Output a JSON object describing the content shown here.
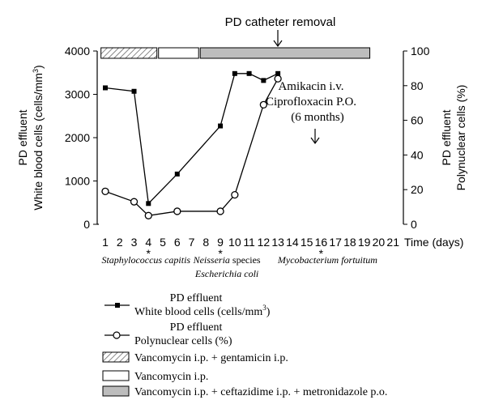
{
  "chart_data": {
    "type": "line",
    "annotation_top": "PD catheter removal",
    "annotation_mid": [
      "Amikacin i.v.",
      "Ciprofloxacin P.O.",
      "(6 months)"
    ],
    "xlabel": "Time (days)",
    "xticks": [
      1,
      2,
      3,
      4,
      5,
      6,
      7,
      8,
      9,
      10,
      11,
      12,
      13,
      14,
      15,
      16,
      17,
      18,
      19,
      20,
      21
    ],
    "xlim": [
      1,
      21
    ],
    "ylabel_left": [
      "PD effluent",
      "White blood cells (cells/mm",
      "3",
      ")"
    ],
    "ylim_left": [
      0,
      4000
    ],
    "yticks_left": [
      0,
      1000,
      2000,
      3000,
      4000
    ],
    "ylabel_right": [
      "PD effluent",
      "Polynuclear cells (%)"
    ],
    "ylim_right": [
      0,
      100
    ],
    "yticks_right": [
      0,
      20,
      40,
      60,
      80,
      100
    ],
    "series": [
      {
        "name": "PD effluent White blood cells (cells/mm3)",
        "axis": "left",
        "marker": "filled-square",
        "x": [
          1,
          3,
          4,
          6,
          9,
          10,
          11,
          12,
          13
        ],
        "y": [
          3150,
          3070,
          480,
          1160,
          2270,
          3480,
          3480,
          3320,
          3480
        ]
      },
      {
        "name": "PD effluent Polynuclear cells (%)",
        "axis": "right",
        "marker": "open-circle",
        "x": [
          1,
          3,
          4,
          6,
          9,
          10,
          12,
          13
        ],
        "y": [
          19,
          13,
          5,
          7.5,
          7.5,
          17,
          69,
          84
        ]
      }
    ],
    "treatment_bar": [
      {
        "label": "Vancomycin i.p. + gentamicin i.p.",
        "pattern": "hatched",
        "start": 0.7,
        "end": 4.7
      },
      {
        "label": "Vancomycin i.p.",
        "pattern": "white",
        "start": 4.7,
        "end": 7.6
      },
      {
        "label": "Vancomycin i.p. + ceftazidime i.p. + metronidazole p.o.",
        "pattern": "gray",
        "start": 7.6,
        "end": 19.5
      }
    ],
    "organisms": [
      {
        "day": 4,
        "lines": [
          "Staphylococcus capitis"
        ]
      },
      {
        "day": 9,
        "lines": [
          "Neisseria species",
          "Escherichia coli"
        ]
      },
      {
        "day": 16,
        "lines": [
          "Mycobacterium fortuitum"
        ]
      }
    ],
    "legend": [
      {
        "marker": "filled-square",
        "line1": "PD effluent",
        "line2": "White blood cells (cells/mm",
        "sup": "3",
        "tail": ")"
      },
      {
        "marker": "open-circle",
        "line1": "PD effluent",
        "line2": "Polynuclear cells (%)"
      },
      {
        "marker": "hatched-box",
        "line1": "Vancomycin i.p. + gentamicin i.p."
      },
      {
        "marker": "white-box",
        "line1": "Vancomycin i.p."
      },
      {
        "marker": "gray-box",
        "line1": "Vancomycin i.p. + ceftazidime i.p. + metronidazole p.o."
      }
    ],
    "legend_placement": "bottom",
    "colors": {
      "line": "#000000",
      "gray_box": "#bdbdbd",
      "hatch": "#555555"
    },
    "grid": false
  }
}
